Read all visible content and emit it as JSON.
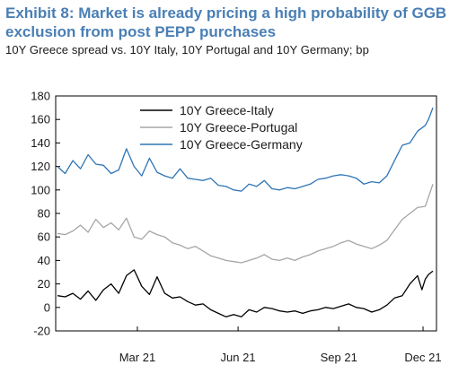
{
  "header": {
    "title": "Exhibit 8: Market is already pricing a high probability of GGB exclusion from post PEPP purchases",
    "subtitle": "10Y Greece spread vs. 10Y Italy, 10Y Portugal and 10Y Germany; bp"
  },
  "chart_data": {
    "type": "line",
    "title": "Exhibit 8: Market is already pricing a high probability of GGB exclusion from post PEPP purchases",
    "subtitle": "10Y Greece spread vs. 10Y Italy, 10Y Portugal and 10Y Germany; bp",
    "xlabel": "",
    "ylabel": "",
    "ylim": [
      -20,
      180
    ],
    "yticks": [
      180,
      160,
      140,
      120,
      100,
      80,
      60,
      40,
      20,
      0,
      -20
    ],
    "xlim": [
      "2021-01-01",
      "2021-12-10"
    ],
    "xticks": [
      {
        "date": "2021-03-15",
        "label": "Mar 21"
      },
      {
        "date": "2021-06-15",
        "label": "Jun 21"
      },
      {
        "date": "2021-09-15",
        "label": "Sep 21"
      },
      {
        "date": "2021-12-01",
        "label": "Dec 21"
      }
    ],
    "grid": false,
    "legend": "top-center",
    "colors": {
      "greece_italy": "#000000",
      "greece_portugal": "#a6a6a6",
      "greece_germany": "#2e75b6"
    },
    "series": [
      {
        "name": "10Y Greece-Italy",
        "color": "#000000",
        "points": [
          [
            "2021-01-01",
            10
          ],
          [
            "2021-01-08",
            9
          ],
          [
            "2021-01-15",
            12
          ],
          [
            "2021-01-22",
            7
          ],
          [
            "2021-01-29",
            14
          ],
          [
            "2021-02-05",
            6
          ],
          [
            "2021-02-12",
            15
          ],
          [
            "2021-02-19",
            20
          ],
          [
            "2021-02-26",
            12
          ],
          [
            "2021-03-05",
            27
          ],
          [
            "2021-03-12",
            32
          ],
          [
            "2021-03-19",
            18
          ],
          [
            "2021-03-26",
            11
          ],
          [
            "2021-04-02",
            26
          ],
          [
            "2021-04-09",
            12
          ],
          [
            "2021-04-16",
            8
          ],
          [
            "2021-04-23",
            9
          ],
          [
            "2021-04-30",
            5
          ],
          [
            "2021-05-07",
            2
          ],
          [
            "2021-05-14",
            3
          ],
          [
            "2021-05-21",
            -2
          ],
          [
            "2021-05-28",
            -5
          ],
          [
            "2021-06-04",
            -8
          ],
          [
            "2021-06-11",
            -6
          ],
          [
            "2021-06-18",
            -8
          ],
          [
            "2021-06-25",
            -2
          ],
          [
            "2021-07-02",
            -4
          ],
          [
            "2021-07-09",
            0
          ],
          [
            "2021-07-16",
            -1
          ],
          [
            "2021-07-23",
            -3
          ],
          [
            "2021-07-30",
            -4
          ],
          [
            "2021-08-06",
            -3
          ],
          [
            "2021-08-13",
            -5
          ],
          [
            "2021-08-20",
            -3
          ],
          [
            "2021-08-27",
            -2
          ],
          [
            "2021-09-03",
            0
          ],
          [
            "2021-09-10",
            -1
          ],
          [
            "2021-09-17",
            1
          ],
          [
            "2021-09-24",
            3
          ],
          [
            "2021-10-01",
            0
          ],
          [
            "2021-10-08",
            -1
          ],
          [
            "2021-10-15",
            -4
          ],
          [
            "2021-10-22",
            -2
          ],
          [
            "2021-10-29",
            2
          ],
          [
            "2021-11-05",
            8
          ],
          [
            "2021-11-12",
            10
          ],
          [
            "2021-11-19",
            20
          ],
          [
            "2021-11-26",
            27
          ],
          [
            "2021-11-30",
            15
          ],
          [
            "2021-12-03",
            24
          ],
          [
            "2021-12-06",
            28
          ],
          [
            "2021-12-10",
            31
          ]
        ]
      },
      {
        "name": "10Y Greece-Portugal",
        "color": "#a6a6a6",
        "points": [
          [
            "2021-01-01",
            63
          ],
          [
            "2021-01-08",
            62
          ],
          [
            "2021-01-15",
            65
          ],
          [
            "2021-01-22",
            70
          ],
          [
            "2021-01-29",
            64
          ],
          [
            "2021-02-05",
            75
          ],
          [
            "2021-02-12",
            68
          ],
          [
            "2021-02-19",
            72
          ],
          [
            "2021-02-26",
            66
          ],
          [
            "2021-03-05",
            76
          ],
          [
            "2021-03-12",
            60
          ],
          [
            "2021-03-19",
            58
          ],
          [
            "2021-03-26",
            65
          ],
          [
            "2021-04-02",
            62
          ],
          [
            "2021-04-09",
            60
          ],
          [
            "2021-04-16",
            55
          ],
          [
            "2021-04-23",
            53
          ],
          [
            "2021-04-30",
            50
          ],
          [
            "2021-05-07",
            52
          ],
          [
            "2021-05-14",
            48
          ],
          [
            "2021-05-21",
            44
          ],
          [
            "2021-05-28",
            42
          ],
          [
            "2021-06-04",
            40
          ],
          [
            "2021-06-11",
            39
          ],
          [
            "2021-06-18",
            38
          ],
          [
            "2021-06-25",
            40
          ],
          [
            "2021-07-02",
            42
          ],
          [
            "2021-07-09",
            45
          ],
          [
            "2021-07-16",
            41
          ],
          [
            "2021-07-23",
            40
          ],
          [
            "2021-07-30",
            42
          ],
          [
            "2021-08-06",
            40
          ],
          [
            "2021-08-13",
            43
          ],
          [
            "2021-08-20",
            45
          ],
          [
            "2021-08-27",
            48
          ],
          [
            "2021-09-03",
            50
          ],
          [
            "2021-09-10",
            52
          ],
          [
            "2021-09-17",
            55
          ],
          [
            "2021-09-24",
            57
          ],
          [
            "2021-10-01",
            54
          ],
          [
            "2021-10-08",
            52
          ],
          [
            "2021-10-15",
            50
          ],
          [
            "2021-10-22",
            53
          ],
          [
            "2021-10-29",
            57
          ],
          [
            "2021-11-05",
            66
          ],
          [
            "2021-11-12",
            75
          ],
          [
            "2021-11-19",
            80
          ],
          [
            "2021-11-26",
            85
          ],
          [
            "2021-12-03",
            86
          ],
          [
            "2021-12-06",
            94
          ],
          [
            "2021-12-10",
            105
          ]
        ]
      },
      {
        "name": "10Y Greece-Germany",
        "color": "#2e75b6",
        "points": [
          [
            "2021-01-01",
            120
          ],
          [
            "2021-01-08",
            114
          ],
          [
            "2021-01-15",
            125
          ],
          [
            "2021-01-22",
            118
          ],
          [
            "2021-01-29",
            130
          ],
          [
            "2021-02-05",
            122
          ],
          [
            "2021-02-12",
            121
          ],
          [
            "2021-02-19",
            114
          ],
          [
            "2021-02-26",
            117
          ],
          [
            "2021-03-05",
            135
          ],
          [
            "2021-03-12",
            120
          ],
          [
            "2021-03-19",
            112
          ],
          [
            "2021-03-26",
            127
          ],
          [
            "2021-04-02",
            115
          ],
          [
            "2021-04-09",
            112
          ],
          [
            "2021-04-16",
            110
          ],
          [
            "2021-04-23",
            118
          ],
          [
            "2021-04-30",
            110
          ],
          [
            "2021-05-07",
            109
          ],
          [
            "2021-05-14",
            108
          ],
          [
            "2021-05-21",
            110
          ],
          [
            "2021-05-28",
            104
          ],
          [
            "2021-06-04",
            103
          ],
          [
            "2021-06-11",
            100
          ],
          [
            "2021-06-18",
            99
          ],
          [
            "2021-06-25",
            105
          ],
          [
            "2021-07-02",
            103
          ],
          [
            "2021-07-09",
            108
          ],
          [
            "2021-07-16",
            101
          ],
          [
            "2021-07-23",
            100
          ],
          [
            "2021-07-30",
            102
          ],
          [
            "2021-08-06",
            101
          ],
          [
            "2021-08-13",
            103
          ],
          [
            "2021-08-20",
            105
          ],
          [
            "2021-08-27",
            109
          ],
          [
            "2021-09-03",
            110
          ],
          [
            "2021-09-10",
            112
          ],
          [
            "2021-09-17",
            113
          ],
          [
            "2021-09-24",
            112
          ],
          [
            "2021-10-01",
            110
          ],
          [
            "2021-10-08",
            105
          ],
          [
            "2021-10-15",
            107
          ],
          [
            "2021-10-22",
            106
          ],
          [
            "2021-10-29",
            112
          ],
          [
            "2021-11-05",
            125
          ],
          [
            "2021-11-12",
            138
          ],
          [
            "2021-11-19",
            140
          ],
          [
            "2021-11-26",
            150
          ],
          [
            "2021-12-03",
            155
          ],
          [
            "2021-12-06",
            160
          ],
          [
            "2021-12-10",
            170
          ]
        ]
      }
    ]
  }
}
